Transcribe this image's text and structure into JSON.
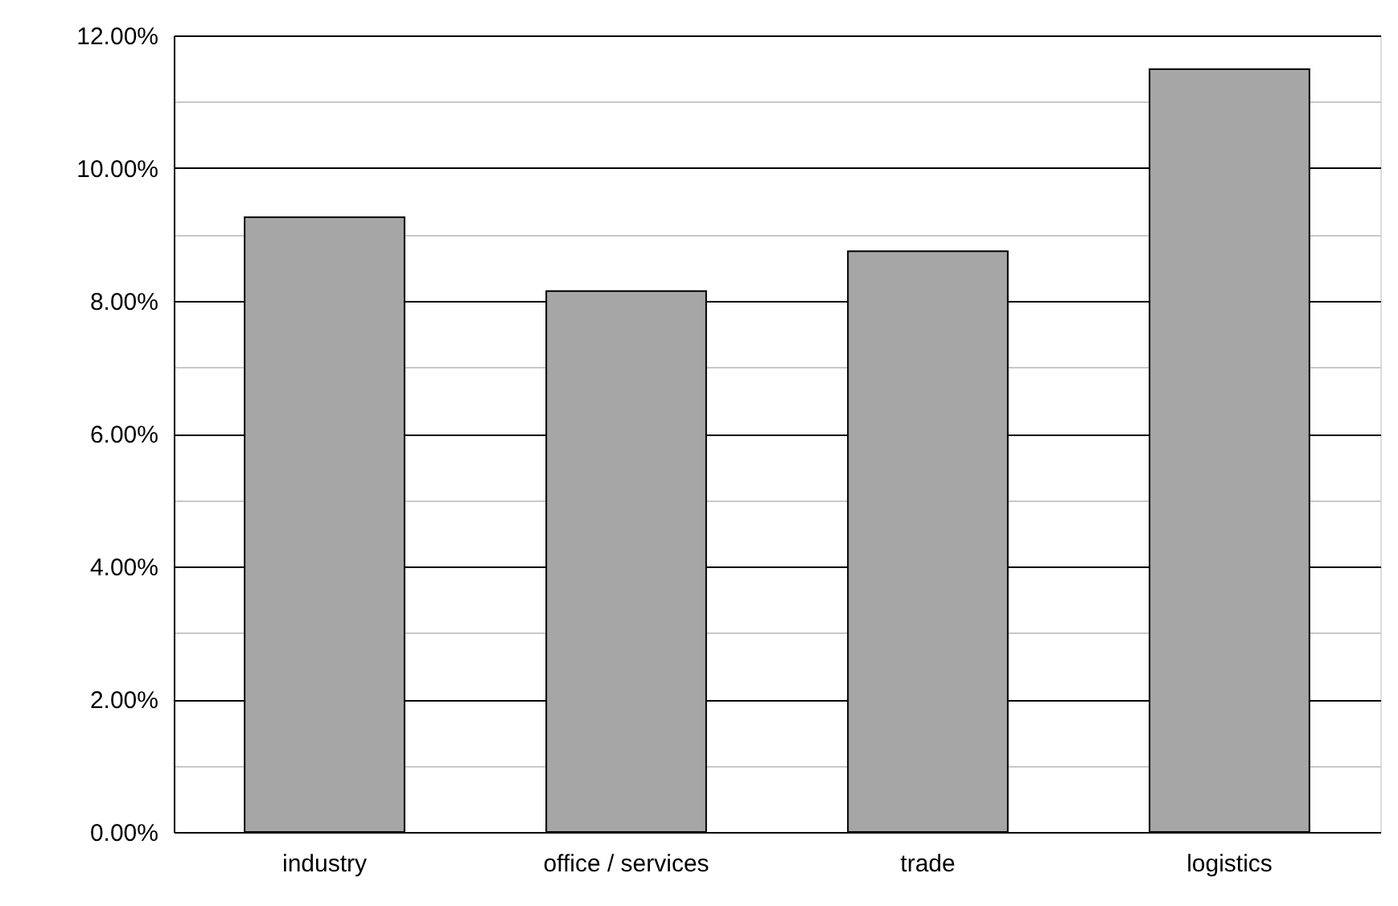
{
  "chart_data": {
    "type": "bar",
    "categories": [
      "industry",
      "office / services",
      "trade",
      "logistics"
    ],
    "values": [
      9.26,
      8.15,
      8.75,
      11.49
    ],
    "color": "#a6a6a6",
    "ylim": [
      0,
      12
    ],
    "yticks": [
      {
        "value": 0,
        "label": "0.00%"
      },
      {
        "value": 1,
        "label": null
      },
      {
        "value": 2,
        "label": "2.00%"
      },
      {
        "value": 3,
        "label": null
      },
      {
        "value": 4,
        "label": "4.00%"
      },
      {
        "value": 5,
        "label": null
      },
      {
        "value": 6,
        "label": "6.00%"
      },
      {
        "value": 7,
        "label": null
      },
      {
        "value": 8,
        "label": "8.00%"
      },
      {
        "value": 9,
        "label": null
      },
      {
        "value": 10,
        "label": "10.00%"
      },
      {
        "value": 11,
        "label": null
      },
      {
        "value": 12,
        "label": "12.00%"
      }
    ],
    "grid": "y"
  }
}
